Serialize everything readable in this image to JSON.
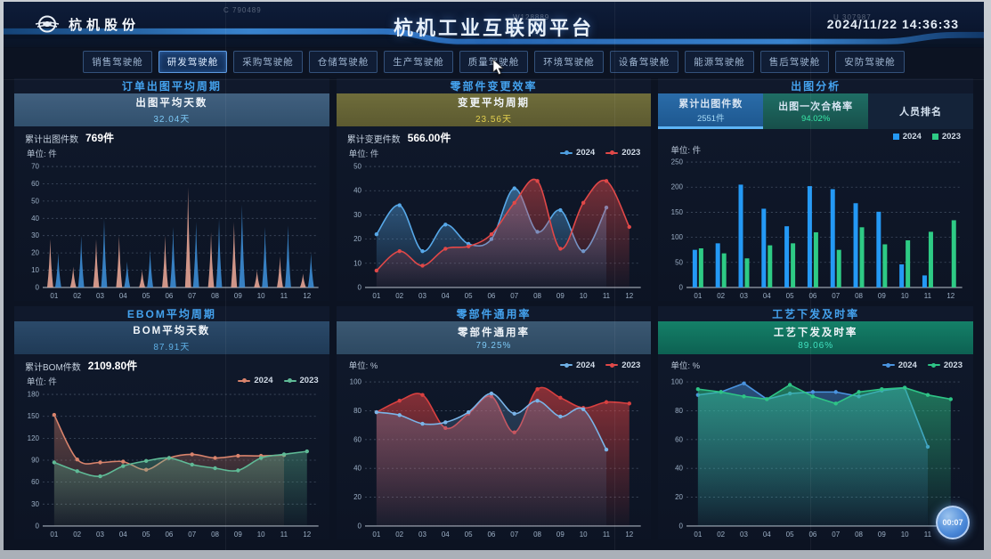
{
  "header": {
    "logo_text": "杭机股份",
    "title": "杭机工业互联网平台",
    "datetime": "2024/11/22  14:36:33",
    "watermarks": [
      "C 790489",
      "W128889",
      "U 307987"
    ]
  },
  "tabs": {
    "active_index": 1,
    "labels": [
      "销售驾驶舱",
      "研发驾驶舱",
      "采购驾驶舱",
      "仓储驾驶舱",
      "生产驾驶舱",
      "质量驾驶舱",
      "环境驾驶舱",
      "设备驾驶舱",
      "能源驾驶舱",
      "售后驾驶舱",
      "安防驾驶舱"
    ]
  },
  "panels": {
    "p1": {
      "title": "订单出图平均周期",
      "kpi_label": "出图平均天数",
      "kpi_value": "32.04天",
      "stat_label": "累计出图件数",
      "stat_value": "769件",
      "unit": "单位: 件"
    },
    "p2": {
      "title": "零部件变更效率",
      "kpi_label": "变更平均周期",
      "kpi_value": "23.56天",
      "stat_label": "累计变更件数",
      "stat_value": "566.00件",
      "unit": "单位: 件",
      "legend": [
        {
          "label": "2024",
          "color": "#4e9fe0",
          "marker": "line"
        },
        {
          "label": "2023",
          "color": "#e04848",
          "marker": "line"
        }
      ]
    },
    "p3": {
      "title": "出图分析",
      "tabs": [
        {
          "label": "累计出图件数",
          "value": "2551件"
        },
        {
          "label": "出图一次合格率",
          "value": "94.02%"
        },
        {
          "label": "人员排名",
          "value": ""
        }
      ],
      "unit": "单位: 件",
      "legend": [
        {
          "label": "2024",
          "color": "#2499f5",
          "marker": "rect"
        },
        {
          "label": "2023",
          "color": "#2ecb85",
          "marker": "rect"
        }
      ]
    },
    "p4": {
      "title": "EBOM平均周期",
      "kpi_label": "BOM平均天数",
      "kpi_value": "87.91天",
      "stat_label": "累计BOM件数",
      "stat_value": "2109.80件",
      "unit": "单位: 件",
      "legend": [
        {
          "label": "2024",
          "color": "#d8836c",
          "marker": "line"
        },
        {
          "label": "2023",
          "color": "#5fba96",
          "marker": "line"
        }
      ]
    },
    "p5": {
      "title": "零部件通用率",
      "kpi_label": "零部件通用率",
      "kpi_value": "79.25%",
      "unit": "单位: %",
      "legend": [
        {
          "label": "2024",
          "color": "#6fb0e6",
          "marker": "line"
        },
        {
          "label": "2023",
          "color": "#e04848",
          "marker": "line"
        }
      ]
    },
    "p6": {
      "title": "工艺下发及时率",
      "kpi_label": "工艺下发及时率",
      "kpi_value": "89.06%",
      "unit": "单位: %",
      "legend": [
        {
          "label": "2024",
          "color": "#4a94e0",
          "marker": "line"
        },
        {
          "label": "2023",
          "color": "#2ec486",
          "marker": "line"
        }
      ]
    }
  },
  "floating_button": "00:07",
  "chart_data": [
    {
      "type": "spike",
      "title": "订单出图平均周期",
      "ylabel": "件",
      "categories": [
        "01",
        "02",
        "03",
        "04",
        "05",
        "06",
        "07",
        "08",
        "09",
        "10",
        "11",
        "12"
      ],
      "ylim": [
        0,
        70
      ],
      "ytick": 10,
      "grid": true,
      "series": [
        {
          "name": "spike-pink",
          "color": "#eba successive",
          "values": []
        },
        {
          "name": "spike-blue",
          "color": "#3d8fd8",
          "values": []
        }
      ]
    },
    {
      "type": "line",
      "smooth": true,
      "title": "零部件变更效率",
      "ylabel": "件",
      "categories": [
        "01",
        "02",
        "03",
        "04",
        "05",
        "06",
        "07",
        "08",
        "09",
        "10",
        "11",
        "12"
      ],
      "ylim": [
        0,
        50
      ],
      "ytick": 10,
      "grid": true,
      "legend_position": "top-right",
      "series": [
        {
          "name": "2024",
          "color": "#57a8e8",
          "area": 0.5,
          "values": [
            22,
            34,
            15,
            26,
            18,
            20,
            41,
            23,
            32,
            15,
            33,
            null
          ]
        },
        {
          "name": "2023",
          "color": "#e04848",
          "area": 0.5,
          "values": [
            7,
            15,
            9,
            16,
            17,
            22,
            35,
            44,
            16,
            35,
            44,
            25
          ]
        }
      ]
    },
    {
      "type": "bar",
      "title": "累计出图件数",
      "ylabel": "件",
      "categories": [
        "01",
        "02",
        "03",
        "04",
        "05",
        "06",
        "07",
        "08",
        "09",
        "10",
        "11",
        "12"
      ],
      "ylim": [
        0,
        250
      ],
      "ytick": 50,
      "grid": true,
      "legend_position": "top-right",
      "series": [
        {
          "name": "2024",
          "color": "#2499f5",
          "values": [
            75,
            88,
            205,
            157,
            122,
            202,
            196,
            168,
            151,
            46,
            24,
            0
          ]
        },
        {
          "name": "2023",
          "color": "#2ecb85",
          "values": [
            78,
            68,
            58,
            84,
            88,
            110,
            75,
            120,
            86,
            94,
            111,
            134
          ]
        }
      ]
    },
    {
      "type": "line",
      "smooth": true,
      "title": "EBOM平均周期",
      "ylabel": "件",
      "categories": [
        "01",
        "02",
        "03",
        "04",
        "05",
        "06",
        "07",
        "08",
        "09",
        "10",
        "11",
        "12"
      ],
      "ylim": [
        0,
        180
      ],
      "ytick": 30,
      "grid": true,
      "legend_position": "top-right",
      "series": [
        {
          "name": "2024",
          "color": "#d8836c",
          "area": 0.4,
          "values": [
            152,
            91,
            87,
            88,
            77,
            93,
            98,
            93,
            96,
            96,
            97,
            null
          ]
        },
        {
          "name": "2023",
          "color": "#5fba96",
          "area": 0.38,
          "values": [
            87,
            75,
            68,
            82,
            89,
            93,
            84,
            79,
            76,
            93,
            98,
            102
          ]
        }
      ]
    },
    {
      "type": "line",
      "smooth": true,
      "title": "零部件通用率",
      "ylabel": "%",
      "categories": [
        "01",
        "02",
        "03",
        "04",
        "05",
        "06",
        "07",
        "08",
        "09",
        "10",
        "11",
        "12"
      ],
      "ylim": [
        0,
        100
      ],
      "ytick": 20,
      "grid": true,
      "legend_position": "top-right",
      "series": [
        {
          "name": "2023",
          "color": "#d84040",
          "area": 0.6,
          "values": [
            79,
            87,
            91,
            68,
            78,
            90,
            65,
            95,
            89,
            82,
            86,
            85
          ]
        },
        {
          "name": "2024",
          "color": "#7ab4e8",
          "area": 0.25,
          "values": [
            79,
            77,
            71,
            72,
            79,
            92,
            78,
            87,
            76,
            81,
            53,
            null
          ]
        }
      ]
    },
    {
      "type": "line",
      "smooth": false,
      "title": "工艺下发及时率",
      "ylabel": "%",
      "categories": [
        "01",
        "02",
        "03",
        "04",
        "05",
        "06",
        "07",
        "08",
        "09",
        "10",
        "11",
        "12"
      ],
      "ylim": [
        0,
        100
      ],
      "ytick": 20,
      "grid": true,
      "legend_position": "top-right",
      "series": [
        {
          "name": "2024",
          "color": "#4a94e0",
          "area": 0.45,
          "values": [
            91,
            93,
            99,
            88,
            92,
            93,
            93,
            90,
            94,
            96,
            55,
            null
          ]
        },
        {
          "name": "2023",
          "color": "#2ec486",
          "area": 0.55,
          "values": [
            95,
            93,
            90,
            88,
            98,
            90,
            85,
            93,
            95,
            96,
            91,
            88
          ]
        }
      ]
    }
  ],
  "spike_values": {
    "pink": [
      28,
      12,
      28,
      30,
      10,
      30,
      58,
      32,
      38,
      10,
      18,
      8
    ],
    "blue": [
      20,
      30,
      40,
      15,
      22,
      35,
      38,
      40,
      48,
      35,
      36,
      20
    ],
    "pink_color": "#eaa796",
    "blue_color": "#3d8fd8"
  }
}
